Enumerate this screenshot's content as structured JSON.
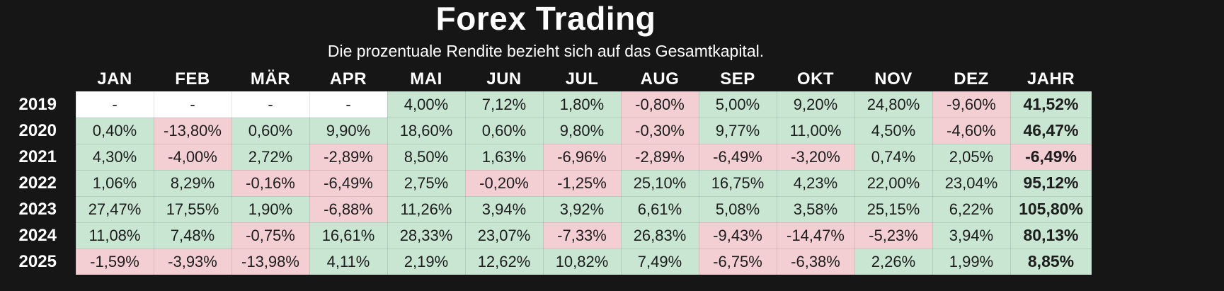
{
  "title": "Forex Trading",
  "subtitle": "Die prozentuale Rendite bezieht sich auf das Gesamtkapital.",
  "chart_data": {
    "type": "table",
    "title": "Forex Trading",
    "columns": [
      "JAN",
      "FEB",
      "MÄR",
      "APR",
      "MAI",
      "JUN",
      "JUL",
      "AUG",
      "SEP",
      "OKT",
      "NOV",
      "DEZ",
      "JAHR"
    ],
    "rows": [
      {
        "year": "2019",
        "monthly": [
          "-",
          "-",
          "-",
          "-",
          "4,00%",
          "7,12%",
          "1,80%",
          "-0,80%",
          "5,00%",
          "9,20%",
          "24,80%",
          "-9,60%"
        ],
        "yearly": "41,52%"
      },
      {
        "year": "2020",
        "monthly": [
          "0,40%",
          "-13,80%",
          "0,60%",
          "9,90%",
          "18,60%",
          "0,60%",
          "9,80%",
          "-0,30%",
          "9,77%",
          "11,00%",
          "4,50%",
          "-4,60%"
        ],
        "yearly": "46,47%"
      },
      {
        "year": "2021",
        "monthly": [
          "4,30%",
          "-4,00%",
          "2,72%",
          "-2,89%",
          "8,50%",
          "1,63%",
          "-6,96%",
          "-2,89%",
          "-6,49%",
          "-3,20%",
          "0,74%",
          "2,05%"
        ],
        "yearly": "-6,49%"
      },
      {
        "year": "2022",
        "monthly": [
          "1,06%",
          "8,29%",
          "-0,16%",
          "-6,49%",
          "2,75%",
          "-0,20%",
          "-1,25%",
          "25,10%",
          "16,75%",
          "4,23%",
          "22,00%",
          "23,04%"
        ],
        "yearly": "95,12%"
      },
      {
        "year": "2023",
        "monthly": [
          "27,47%",
          "17,55%",
          "1,90%",
          "-6,88%",
          "11,26%",
          "3,94%",
          "3,92%",
          "6,61%",
          "5,08%",
          "3,58%",
          "25,15%",
          "6,22%"
        ],
        "yearly": "105,80%"
      },
      {
        "year": "2024",
        "monthly": [
          "11,08%",
          "7,48%",
          "-0,75%",
          "16,61%",
          "28,33%",
          "23,07%",
          "-7,33%",
          "26,83%",
          "-9,43%",
          "-14,47%",
          "-5,23%",
          "3,94%"
        ],
        "yearly": "80,13%"
      },
      {
        "year": "2025",
        "monthly": [
          "-1,59%",
          "-3,93%",
          "-13,98%",
          "4,11%",
          "2,19%",
          "12,62%",
          "10,82%",
          "7,49%",
          "-6,75%",
          "-6,38%",
          "2,26%",
          "1,99%"
        ],
        "yearly": "8,85%"
      }
    ],
    "color_coding": {
      "positive": "green",
      "negative": "pink",
      "no_data": "white"
    },
    "legend_position": "none",
    "grid": "subtle cell borders"
  },
  "colors": {
    "background": "#161616",
    "positive_cell": "#c8e6d2",
    "negative_cell": "#f3ced3",
    "neutral_cell": "#ffffff",
    "header_text": "#ffffff",
    "cell_text": "#1d1d1d"
  }
}
